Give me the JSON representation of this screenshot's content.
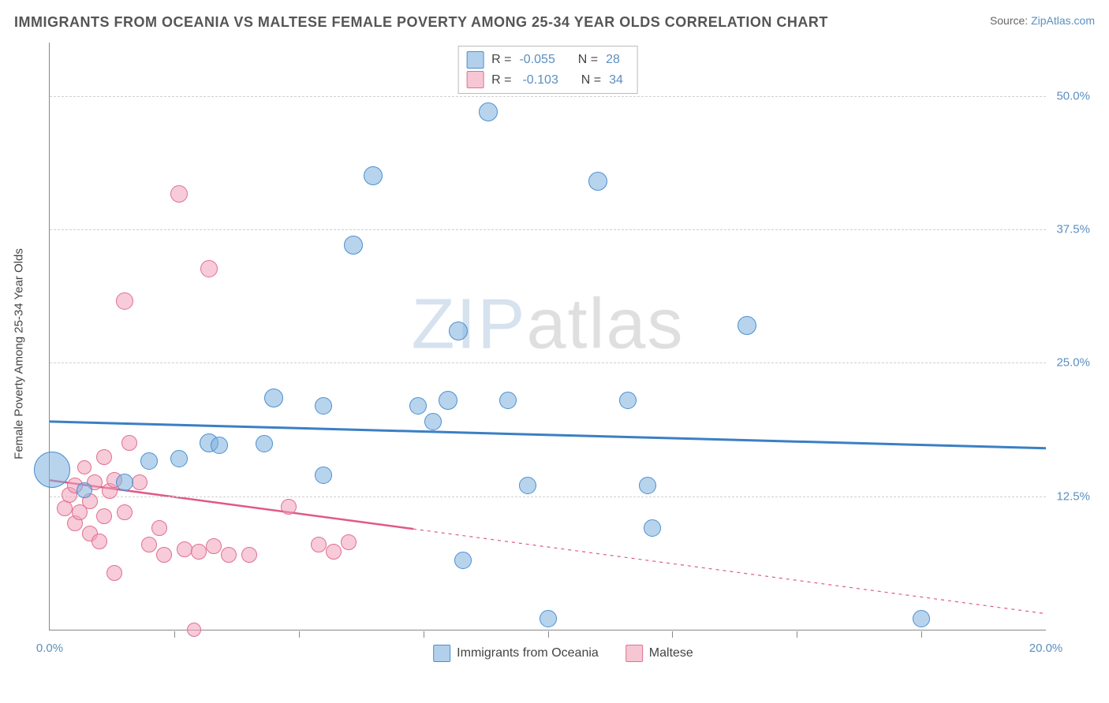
{
  "title": "IMMIGRANTS FROM OCEANIA VS MALTESE FEMALE POVERTY AMONG 25-34 YEAR OLDS CORRELATION CHART",
  "source_prefix": "Source: ",
  "source_link": "ZipAtlas.com",
  "y_axis_label": "Female Poverty Among 25-34 Year Olds",
  "watermark": {
    "part1": "ZIP",
    "part2": "atlas"
  },
  "chart": {
    "type": "scatter",
    "xlim": [
      0,
      20
    ],
    "ylim": [
      0,
      55
    ],
    "x_primary_ticks": [
      0,
      20
    ],
    "x_minor_ticks": [
      2.5,
      5,
      7.5,
      10,
      12.5,
      15,
      17.5
    ],
    "y_ticks": [
      12.5,
      25.0,
      37.5,
      50.0
    ],
    "x_tick_labels": [
      "0.0%",
      "20.0%"
    ],
    "y_tick_labels": [
      "12.5%",
      "25.0%",
      "37.5%",
      "50.0%"
    ],
    "grid_color": "#d0d0d0",
    "background_color": "#ffffff",
    "axis_color": "#888888"
  },
  "series": {
    "blue": {
      "label": "Immigrants from Oceania",
      "R": "-0.055",
      "N": "28",
      "color_fill": "#7eb0de",
      "color_stroke": "#4a8fd0",
      "trend": {
        "y_at_x0": 19.5,
        "y_at_x20": 17.0,
        "solid_to_x": 20
      },
      "points": [
        {
          "x": 0.05,
          "y": 15.0,
          "r": 22
        },
        {
          "x": 0.7,
          "y": 13.1,
          "r": 9
        },
        {
          "x": 1.5,
          "y": 13.8,
          "r": 10
        },
        {
          "x": 2.0,
          "y": 15.8,
          "r": 10
        },
        {
          "x": 2.6,
          "y": 16.0,
          "r": 10
        },
        {
          "x": 3.2,
          "y": 17.5,
          "r": 11
        },
        {
          "x": 3.4,
          "y": 17.3,
          "r": 10
        },
        {
          "x": 4.3,
          "y": 17.4,
          "r": 10
        },
        {
          "x": 4.5,
          "y": 21.7,
          "r": 11
        },
        {
          "x": 5.5,
          "y": 14.5,
          "r": 10
        },
        {
          "x": 5.5,
          "y": 21.0,
          "r": 10
        },
        {
          "x": 6.1,
          "y": 36.0,
          "r": 11
        },
        {
          "x": 6.5,
          "y": 42.5,
          "r": 11
        },
        {
          "x": 7.4,
          "y": 21.0,
          "r": 10
        },
        {
          "x": 7.7,
          "y": 19.5,
          "r": 10
        },
        {
          "x": 8.0,
          "y": 21.5,
          "r": 11
        },
        {
          "x": 8.2,
          "y": 28.0,
          "r": 11
        },
        {
          "x": 8.8,
          "y": 48.5,
          "r": 11
        },
        {
          "x": 8.3,
          "y": 6.5,
          "r": 10
        },
        {
          "x": 9.2,
          "y": 21.5,
          "r": 10
        },
        {
          "x": 9.6,
          "y": 13.5,
          "r": 10
        },
        {
          "x": 10.0,
          "y": 1.0,
          "r": 10
        },
        {
          "x": 11.6,
          "y": 21.5,
          "r": 10
        },
        {
          "x": 12.0,
          "y": 13.5,
          "r": 10
        },
        {
          "x": 12.1,
          "y": 9.5,
          "r": 10
        },
        {
          "x": 14.0,
          "y": 28.5,
          "r": 11
        },
        {
          "x": 17.5,
          "y": 1.0,
          "r": 10
        },
        {
          "x": 11.0,
          "y": 42.0,
          "r": 11
        }
      ]
    },
    "pink": {
      "label": "Maltese",
      "R": "-0.103",
      "N": "34",
      "color_fill": "#f0a0b9",
      "color_stroke": "#e07090",
      "trend": {
        "y_at_x0": 14.0,
        "y_at_x20": 1.5,
        "solid_to_x": 7.3
      },
      "points": [
        {
          "x": 0.3,
          "y": 11.4,
          "r": 9
        },
        {
          "x": 0.4,
          "y": 12.6,
          "r": 9
        },
        {
          "x": 0.5,
          "y": 13.5,
          "r": 9
        },
        {
          "x": 0.5,
          "y": 10.0,
          "r": 9
        },
        {
          "x": 0.6,
          "y": 11.0,
          "r": 9
        },
        {
          "x": 0.7,
          "y": 15.2,
          "r": 8
        },
        {
          "x": 0.8,
          "y": 12.0,
          "r": 9
        },
        {
          "x": 0.8,
          "y": 9.0,
          "r": 9
        },
        {
          "x": 0.9,
          "y": 13.8,
          "r": 9
        },
        {
          "x": 1.0,
          "y": 8.3,
          "r": 9
        },
        {
          "x": 1.1,
          "y": 16.2,
          "r": 9
        },
        {
          "x": 1.1,
          "y": 10.6,
          "r": 9
        },
        {
          "x": 1.2,
          "y": 13.0,
          "r": 9
        },
        {
          "x": 1.3,
          "y": 14.0,
          "r": 9
        },
        {
          "x": 1.3,
          "y": 5.3,
          "r": 9
        },
        {
          "x": 1.5,
          "y": 11.0,
          "r": 9
        },
        {
          "x": 1.5,
          "y": 30.8,
          "r": 10
        },
        {
          "x": 1.6,
          "y": 17.5,
          "r": 9
        },
        {
          "x": 1.8,
          "y": 13.8,
          "r": 9
        },
        {
          "x": 2.0,
          "y": 8.0,
          "r": 9
        },
        {
          "x": 2.2,
          "y": 9.5,
          "r": 9
        },
        {
          "x": 2.3,
          "y": 7.0,
          "r": 9
        },
        {
          "x": 2.6,
          "y": 40.8,
          "r": 10
        },
        {
          "x": 2.7,
          "y": 7.5,
          "r": 9
        },
        {
          "x": 2.9,
          "y": 0.0,
          "r": 8
        },
        {
          "x": 3.0,
          "y": 7.3,
          "r": 9
        },
        {
          "x": 3.2,
          "y": 33.8,
          "r": 10
        },
        {
          "x": 3.3,
          "y": 7.8,
          "r": 9
        },
        {
          "x": 3.6,
          "y": 7.0,
          "r": 9
        },
        {
          "x": 4.0,
          "y": 7.0,
          "r": 9
        },
        {
          "x": 4.8,
          "y": 11.5,
          "r": 9
        },
        {
          "x": 5.4,
          "y": 8.0,
          "r": 9
        },
        {
          "x": 5.7,
          "y": 7.3,
          "r": 9
        },
        {
          "x": 6.0,
          "y": 8.2,
          "r": 9
        }
      ]
    }
  },
  "legend_box": {
    "r_label": "R =",
    "n_label": "N ="
  },
  "bottom_legend": {
    "items": [
      "Immigrants from Oceania",
      "Maltese"
    ]
  }
}
